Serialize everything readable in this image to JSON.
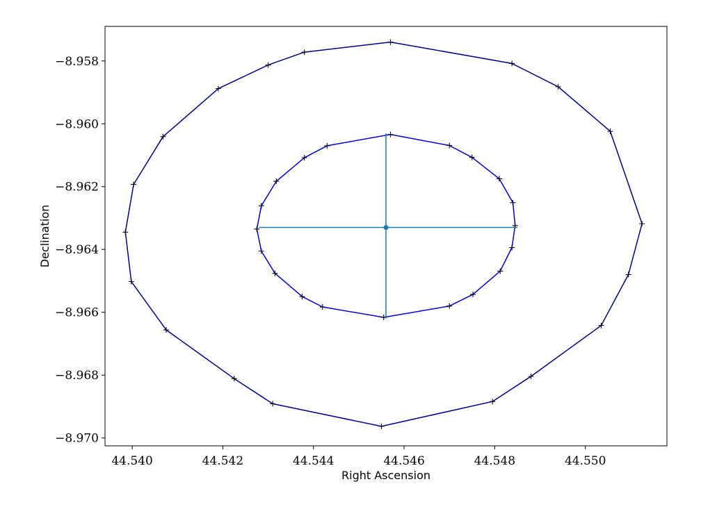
{
  "chart_data": {
    "type": "scatter",
    "title": "",
    "xlabel": "Right Ascension",
    "ylabel": "Declination",
    "xlim": [
      44.5394,
      44.5518
    ],
    "ylim": [
      -8.97025,
      -8.9569
    ],
    "grid": false,
    "legend": "none",
    "xticks": [
      44.54,
      44.542,
      44.544,
      44.546,
      44.548,
      44.55
    ],
    "xtick_labels": [
      "44.540",
      "44.542",
      "44.544",
      "44.546",
      "44.548",
      "44.550"
    ],
    "yticks": [
      -8.958,
      -8.96,
      -8.962,
      -8.964,
      -8.966,
      -8.968,
      -8.97
    ],
    "ytick_labels": [
      "−8.958",
      "−8.960",
      "−8.962",
      "−8.964",
      "−8.966",
      "−8.968",
      "−8.970"
    ],
    "center": {
      "ra": 44.5456,
      "dec": -8.9633
    },
    "crosshair": {
      "horizontal": {
        "ra": [
          44.5428,
          44.5485
        ],
        "dec": -8.9633
      },
      "vertical": {
        "ra": 44.5456,
        "dec": [
          -8.9662,
          -8.9603
        ]
      }
    },
    "series": [
      {
        "color": "#00008b",
        "marker": "+",
        "points": [
          [
            44.55125,
            -8.96318
          ],
          [
            44.55095,
            -8.9648
          ],
          [
            44.55035,
            -8.96642
          ],
          [
            44.5488,
            -8.96804
          ],
          [
            44.54795,
            -8.96884
          ],
          [
            44.5455,
            -8.96963
          ],
          [
            44.5431,
            -8.96891
          ],
          [
            44.54225,
            -8.96811
          ],
          [
            44.54075,
            -8.96656
          ],
          [
            44.53998,
            -8.96502
          ],
          [
            44.53985,
            -8.96345
          ],
          [
            44.54003,
            -8.96193
          ],
          [
            44.54068,
            -8.96041
          ],
          [
            44.5419,
            -8.95888
          ],
          [
            44.543,
            -8.95813
          ],
          [
            44.5438,
            -8.95772
          ],
          [
            44.5457,
            -8.9574
          ],
          [
            44.54838,
            -8.95808
          ],
          [
            44.5494,
            -8.95882
          ],
          [
            44.55055,
            -8.96024
          ],
          [
            44.55125,
            -8.96318
          ]
        ]
      },
      {
        "color": "#0000cd",
        "marker": "+",
        "points": [
          [
            44.54845,
            -8.96324
          ],
          [
            44.54838,
            -8.96394
          ],
          [
            44.54812,
            -8.96469
          ],
          [
            44.54752,
            -8.96543
          ],
          [
            44.547,
            -8.9658
          ],
          [
            44.54555,
            -8.96616
          ],
          [
            44.5442,
            -8.96583
          ],
          [
            44.54375,
            -8.9655
          ],
          [
            44.54315,
            -8.96476
          ],
          [
            44.54285,
            -8.96405
          ],
          [
            44.54275,
            -8.96335
          ],
          [
            44.54285,
            -8.96261
          ],
          [
            44.54318,
            -8.96183
          ],
          [
            44.5438,
            -8.96108
          ],
          [
            44.5443,
            -8.9607
          ],
          [
            44.5457,
            -8.96034
          ],
          [
            44.547,
            -8.96069
          ],
          [
            44.5475,
            -8.96107
          ],
          [
            44.5481,
            -8.96175
          ],
          [
            44.5484,
            -8.96251
          ],
          [
            44.54845,
            -8.96324
          ]
        ]
      }
    ]
  }
}
